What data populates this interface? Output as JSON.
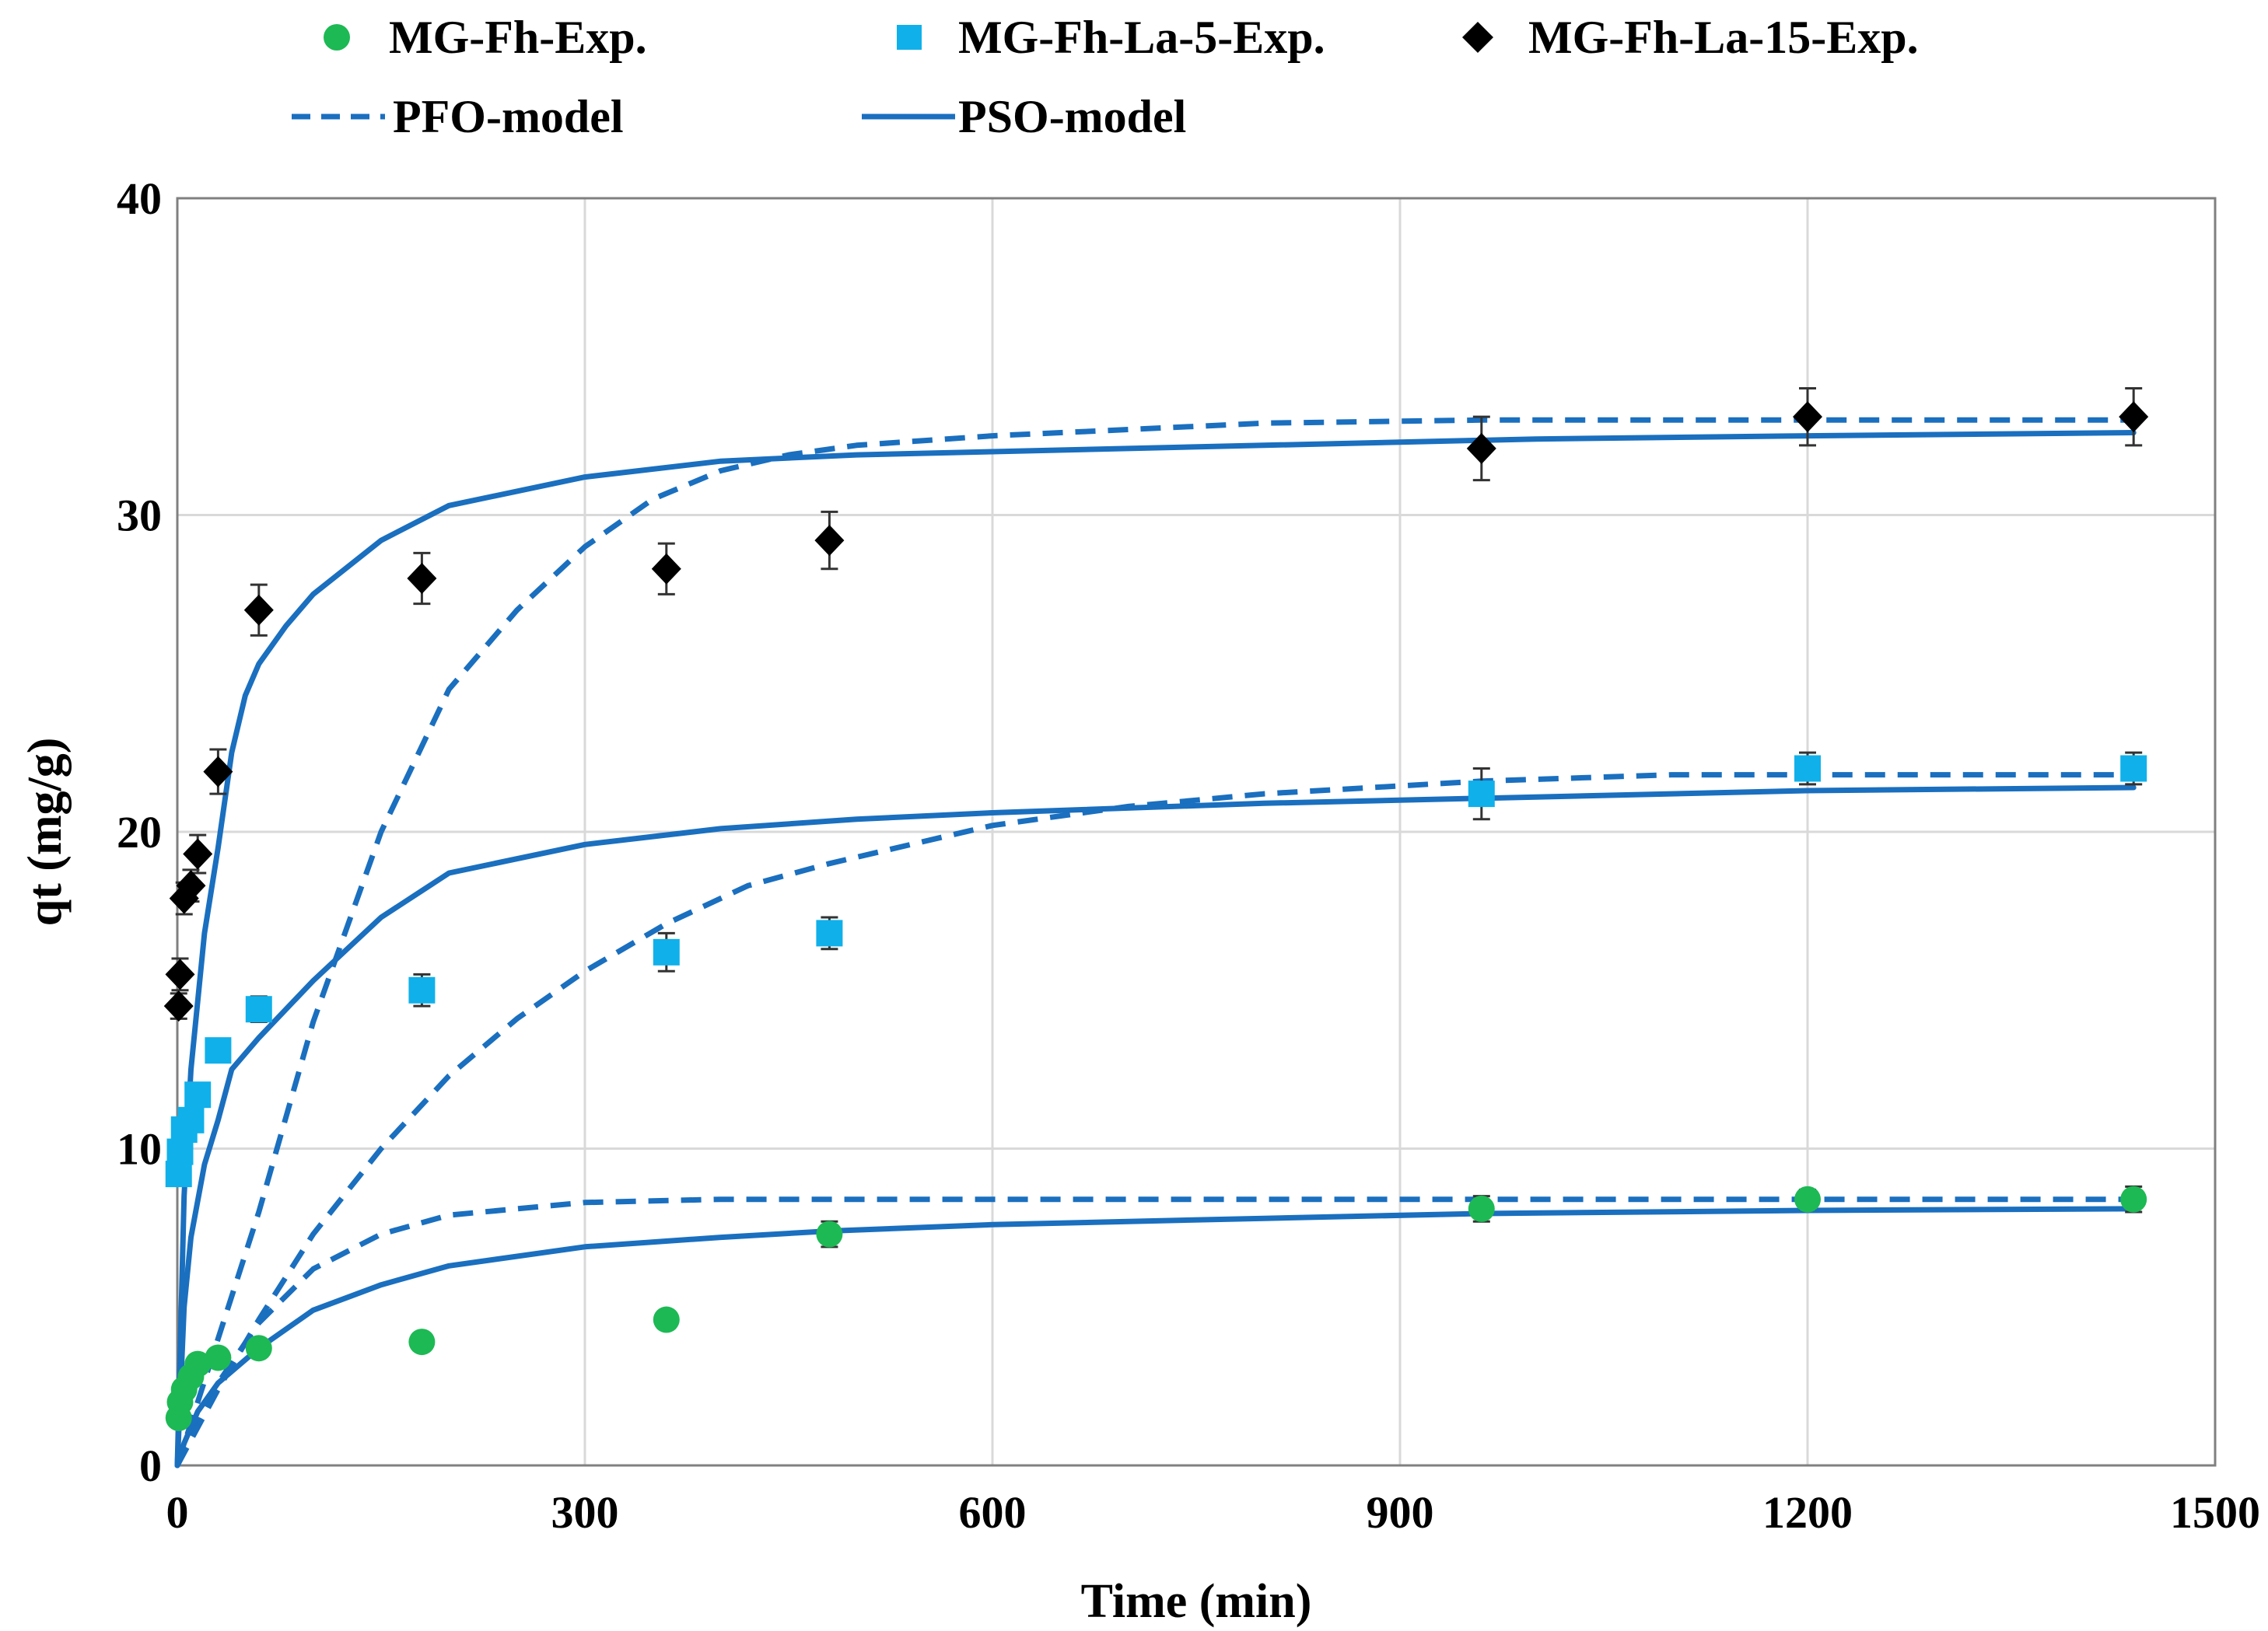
{
  "chart_data": {
    "type": "scatter",
    "title": "",
    "xlabel": "Time (min)",
    "ylabel": "qt (mg/g)",
    "xlim": [
      0,
      1500
    ],
    "ylim": [
      0,
      40
    ],
    "xticks": [
      0,
      300,
      600,
      900,
      1200,
      1500
    ],
    "yticks": [
      0,
      10,
      20,
      30,
      40
    ],
    "grid": true,
    "legend_position": "top",
    "colors": {
      "green": "#1db954",
      "cyan": "#10b0ea",
      "black": "#000000",
      "model": "#1a6fbf",
      "grid": "#d9d9d9",
      "axis": "#808080"
    },
    "legend": {
      "exp1": "MG-Fh-Exp.",
      "exp2": "MG-Fh-La-5-Exp.",
      "exp3": "MG-Fh-La-15-Exp.",
      "pfo": "PFO-model",
      "pso": "PSO-model"
    },
    "experimental": [
      {
        "name": "MG-Fh-Exp.",
        "marker": "circle",
        "color": "#1db954",
        "x": [
          1,
          2,
          5,
          10,
          15,
          30,
          60,
          180,
          360,
          480,
          960,
          1200,
          1440
        ],
        "y": [
          1.5,
          2.0,
          2.4,
          2.8,
          3.2,
          3.4,
          3.7,
          3.9,
          4.6,
          7.3,
          8.1,
          8.4,
          8.4
        ],
        "error": [
          0,
          0,
          0,
          0,
          0,
          0,
          0,
          0,
          0,
          0.4,
          0.4,
          0.3,
          0.4
        ]
      },
      {
        "name": "MG-Fh-La-5-Exp.",
        "marker": "square",
        "color": "#10b0ea",
        "x": [
          1,
          2,
          5,
          10,
          15,
          30,
          60,
          180,
          360,
          480,
          960,
          1200,
          1440
        ],
        "y": [
          9.2,
          9.9,
          10.6,
          10.9,
          11.7,
          13.1,
          14.4,
          15.0,
          16.2,
          16.8,
          21.2,
          22.0,
          22.0
        ],
        "error": [
          0,
          0,
          0,
          0,
          0,
          0,
          0.4,
          0.5,
          0.6,
          0.5,
          0.8,
          0.5,
          0.5
        ]
      },
      {
        "name": "MG-Fh-La-15-Exp.",
        "marker": "diamond",
        "color": "#000000",
        "x": [
          1,
          2,
          5,
          10,
          15,
          30,
          60,
          180,
          360,
          480,
          960,
          1200,
          1440
        ],
        "y": [
          14.5,
          15.5,
          17.9,
          18.3,
          19.3,
          21.9,
          27.0,
          28.0,
          28.3,
          29.2,
          32.1,
          33.1,
          33.1
        ],
        "error": [
          0.4,
          0.5,
          0.5,
          0.5,
          0.6,
          0.7,
          0.8,
          0.8,
          0.8,
          0.9,
          1.0,
          0.9,
          0.9
        ]
      }
    ],
    "models": [
      {
        "name": "PFO-model",
        "series": "MG-Fh",
        "style": "dashed",
        "x": [
          0,
          30,
          60,
          100,
          150,
          200,
          250,
          300,
          400,
          500,
          700,
          900,
          1200,
          1440
        ],
        "y": [
          0,
          2.6,
          4.5,
          6.2,
          7.3,
          7.9,
          8.1,
          8.3,
          8.4,
          8.4,
          8.4,
          8.4,
          8.4,
          8.4
        ]
      },
      {
        "name": "PSO-model",
        "series": "MG-Fh",
        "style": "solid",
        "x": [
          0,
          5,
          15,
          30,
          60,
          100,
          150,
          200,
          300,
          400,
          480,
          600,
          800,
          960,
          1200,
          1440
        ],
        "y": [
          0,
          0.7,
          1.7,
          2.6,
          3.7,
          4.9,
          5.7,
          6.3,
          6.9,
          7.2,
          7.4,
          7.6,
          7.8,
          7.95,
          8.05,
          8.1
        ]
      },
      {
        "name": "PFO-model",
        "series": "MG-Fh-La-5",
        "style": "dashed",
        "x": [
          0,
          30,
          60,
          100,
          150,
          200,
          250,
          300,
          360,
          420,
          480,
          600,
          700,
          800,
          960,
          1100,
          1200,
          1440
        ],
        "y": [
          0,
          2.4,
          4.6,
          7.3,
          10.0,
          12.3,
          14.1,
          15.6,
          17.1,
          18.3,
          19.0,
          20.2,
          20.8,
          21.2,
          21.6,
          21.8,
          21.8,
          21.8
        ]
      },
      {
        "name": "PSO-model",
        "series": "MG-Fh-La-5",
        "style": "solid",
        "x": [
          0,
          5,
          10,
          20,
          30,
          40,
          60,
          100,
          150,
          200,
          300,
          400,
          500,
          600,
          800,
          1000,
          1200,
          1440
        ],
        "y": [
          0,
          5.0,
          7.2,
          9.5,
          10.9,
          12.5,
          13.5,
          15.3,
          17.3,
          18.7,
          19.6,
          20.1,
          20.4,
          20.6,
          20.9,
          21.1,
          21.3,
          21.4
        ]
      },
      {
        "name": "PFO-model",
        "series": "MG-Fh-La-15",
        "style": "dashed",
        "x": [
          0,
          30,
          60,
          100,
          150,
          200,
          250,
          300,
          350,
          400,
          450,
          500,
          600,
          700,
          800,
          960,
          1200,
          1440
        ],
        "y": [
          0,
          4.0,
          8.0,
          14.0,
          20.0,
          24.5,
          27.0,
          29.0,
          30.5,
          31.4,
          31.9,
          32.2,
          32.5,
          32.7,
          32.9,
          33.0,
          33.0,
          33.0
        ]
      },
      {
        "name": "PSO-model",
        "series": "MG-Fh-La-15",
        "style": "solid",
        "x": [
          0,
          5,
          10,
          20,
          30,
          40,
          50,
          60,
          80,
          100,
          150,
          200,
          300,
          400,
          500,
          600,
          800,
          1000,
          1200,
          1440
        ],
        "y": [
          0,
          8.5,
          12.5,
          16.8,
          19.5,
          22.5,
          24.3,
          25.3,
          26.5,
          27.5,
          29.2,
          30.3,
          31.2,
          31.7,
          31.9,
          32.0,
          32.2,
          32.4,
          32.5,
          32.6
        ]
      }
    ]
  }
}
